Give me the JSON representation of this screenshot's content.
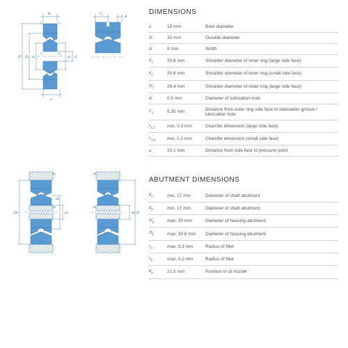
{
  "sections": {
    "dimensions": {
      "title": "DIMENSIONS"
    },
    "abutment": {
      "title": "ABUTMENT DIMENSIONS"
    }
  },
  "dimensions_rows": [
    {
      "sym": "d",
      "sub": "",
      "val": "15 mm",
      "desc": "Bore diameter"
    },
    {
      "sym": "D",
      "sub": "",
      "val": "32 mm",
      "desc": "Outside diameter"
    },
    {
      "sym": "B",
      "sub": "",
      "val": "9 mm",
      "desc": "Width"
    },
    {
      "sym": "d",
      "sub": "1",
      "val": "20.6 mm",
      "desc": "Shoulder diameter of inner ring (large side face)"
    },
    {
      "sym": "d",
      "sub": "2",
      "val": "20.6 mm",
      "desc": "Shoulder diameter of inner ring (small side face)"
    },
    {
      "sym": "D",
      "sub": "1",
      "val": "26.4 mm",
      "desc": "Shoulder diameter of outer ring (large side face)"
    },
    {
      "sym": "K",
      "sub": "",
      "val": "0.5 mm",
      "desc": "Diameter of lubrication hole"
    },
    {
      "sym": "C",
      "sub": "1",
      "val": "5.35 mm",
      "desc": "Distance from outer ring side face to lubrication groove / lubrication hole"
    },
    {
      "sym": "r",
      "sub": "1,2",
      "val": "min. 0.3 mm",
      "desc": "Chamfer dimension (large side face)"
    },
    {
      "sym": "r",
      "sub": "3,4",
      "val": "min. 0.2 mm",
      "desc": "Chamfer dimension (small side face)"
    },
    {
      "sym": "a",
      "sub": "",
      "val": "10.1 mm",
      "desc": "Distance from side face to pressure point"
    }
  ],
  "abutment_rows": [
    {
      "sym": "d",
      "sub": "a",
      "val": "min. 17 mm",
      "desc": "Diameter of shaft abutment"
    },
    {
      "sym": "d",
      "sub": "b",
      "val": "min. 17 mm",
      "desc": "Diameter of shaft abutment"
    },
    {
      "sym": "D",
      "sub": "a",
      "val": "max. 30 mm",
      "desc": "Diameter of housing abutment"
    },
    {
      "sym": "D",
      "sub": "b",
      "val": "max. 30.6 mm",
      "desc": "Diameter of housing abutment"
    },
    {
      "sym": "r",
      "sub": "a",
      "val": "max. 0.3 mm",
      "desc": "Radius of fillet"
    },
    {
      "sym": "r",
      "sub": "b",
      "val": "max. 0.2 mm",
      "desc": "Radius of fillet"
    },
    {
      "sym": "d",
      "sub": "n",
      "val": "21.5 mm",
      "desc": "Position of oil nozzle"
    }
  ],
  "diagram_colors": {
    "fill": "#5a9bd4",
    "stroke": "#3a7bb4",
    "line": "#2a5f8a"
  }
}
